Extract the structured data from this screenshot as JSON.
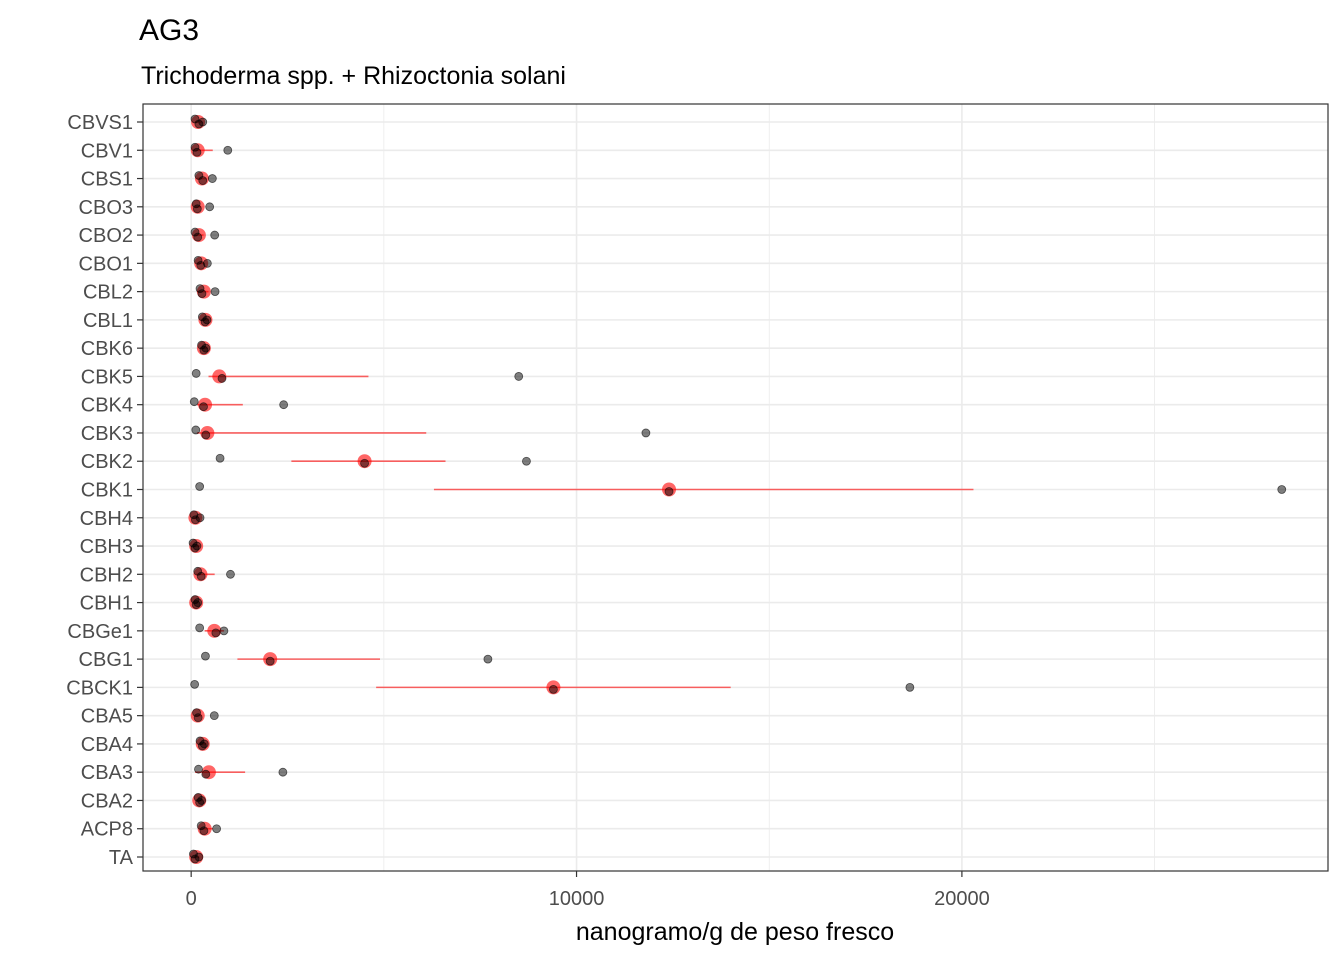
{
  "chart_data": {
    "type": "scatter",
    "title": "AG3",
    "subtitle": "Trichoderma spp. + Rhizoctonia solani",
    "xlabel": "nanogramo/g de peso fresco",
    "ylabel": "",
    "xlim": [
      -1250,
      29500
    ],
    "x_ticks": [
      0,
      10000,
      20000
    ],
    "x_tick_labels": [
      "0",
      "10000",
      "20000"
    ],
    "grid": true,
    "categories": [
      "CBVS1",
      "CBV1",
      "CBS1",
      "CBO3",
      "CBO2",
      "CBO1",
      "CBL2",
      "CBL1",
      "CBK6",
      "CBK5",
      "CBK4",
      "CBK3",
      "CBK2",
      "CBK1",
      "CBH4",
      "CBH3",
      "CBH2",
      "CBH1",
      "CBGe1",
      "CBG1",
      "CBCK1",
      "CBA5",
      "CBA4",
      "CBA3",
      "CBA2",
      "ACP8",
      "TA"
    ],
    "point_color": "#000000",
    "summary_color": "#ff0000",
    "observations": [
      [
        100,
        200,
        300
      ],
      [
        100,
        150,
        950
      ],
      [
        200,
        300,
        550
      ],
      [
        130,
        160,
        480
      ],
      [
        100,
        170,
        610
      ],
      [
        180,
        250,
        420
      ],
      [
        230,
        280,
        620
      ],
      [
        290,
        360,
        410
      ],
      [
        270,
        330,
        380
      ],
      [
        130,
        800,
        8500
      ],
      [
        80,
        320,
        2400
      ],
      [
        120,
        380,
        11800
      ],
      [
        750,
        4500,
        8700
      ],
      [
        220,
        12400,
        28300
      ],
      [
        70,
        110,
        230
      ],
      [
        50,
        100,
        150
      ],
      [
        170,
        260,
        1020
      ],
      [
        100,
        130,
        170
      ],
      [
        220,
        640,
        850
      ],
      [
        370,
        2050,
        7700
      ],
      [
        90,
        9400,
        18650
      ],
      [
        140,
        180,
        600
      ],
      [
        230,
        290,
        340
      ],
      [
        190,
        380,
        2380
      ],
      [
        180,
        220,
        270
      ],
      [
        260,
        330,
        660
      ],
      [
        60,
        100,
        200
      ]
    ],
    "means": [
      180,
      170,
      280,
      170,
      200,
      260,
      330,
      370,
      330,
      730,
      360,
      420,
      4500,
      12400,
      110,
      130,
      240,
      130,
      600,
      2050,
      9400,
      170,
      300,
      460,
      210,
      350,
      130
    ],
    "intervals": [
      [
        100,
        280
      ],
      [
        50,
        560
      ],
      [
        150,
        400
      ],
      [
        100,
        260
      ],
      [
        100,
        320
      ],
      [
        150,
        340
      ],
      [
        150,
        450
      ],
      [
        270,
        450
      ],
      [
        230,
        430
      ],
      [
        450,
        4600
      ],
      [
        150,
        1340
      ],
      [
        150,
        6100
      ],
      [
        2600,
        6600
      ],
      [
        6300,
        20300
      ],
      [
        50,
        180
      ],
      [
        60,
        220
      ],
      [
        130,
        610
      ],
      [
        80,
        180
      ],
      [
        350,
        850
      ],
      [
        1200,
        4900
      ],
      [
        4800,
        14000
      ],
      [
        100,
        280
      ],
      [
        200,
        400
      ],
      [
        100,
        1400
      ],
      [
        150,
        280
      ],
      [
        200,
        560
      ],
      [
        50,
        210
      ]
    ]
  }
}
